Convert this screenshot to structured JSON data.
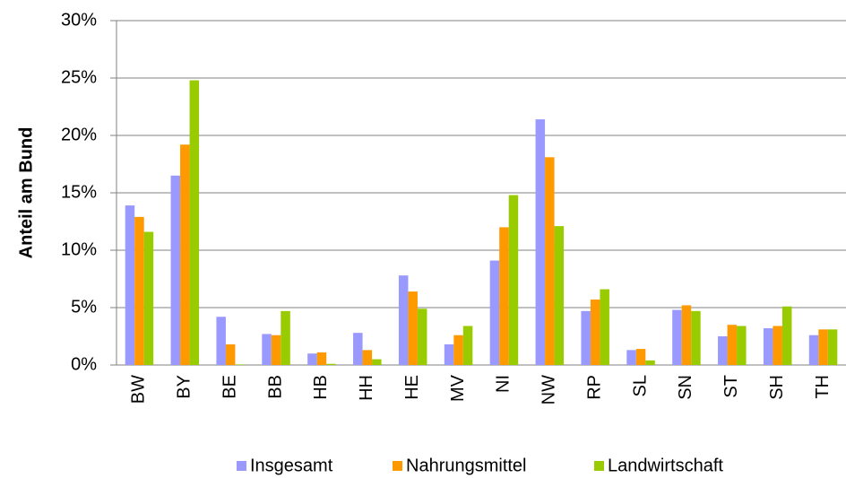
{
  "chart_data": {
    "type": "bar",
    "y_label": "Anteil am Bund",
    "categories": [
      "BW",
      "BY",
      "BE",
      "BB",
      "HB",
      "HH",
      "HE",
      "MV",
      "NI",
      "NW",
      "RP",
      "SL",
      "SN",
      "ST",
      "SH",
      "TH"
    ],
    "series": [
      {
        "name": "Insgesamt",
        "color": "#9999ff",
        "values": [
          13.9,
          16.5,
          4.2,
          2.7,
          1.0,
          2.8,
          7.8,
          1.8,
          9.1,
          21.4,
          4.7,
          1.3,
          4.8,
          2.5,
          3.2,
          2.6
        ]
      },
      {
        "name": "Nahrungsmittel",
        "color": "#ff9900",
        "values": [
          12.9,
          19.2,
          1.8,
          2.6,
          1.1,
          1.3,
          6.4,
          2.6,
          12.0,
          18.1,
          5.7,
          1.4,
          5.2,
          3.5,
          3.4,
          3.1
        ]
      },
      {
        "name": "Landwirtschaft",
        "color": "#99cc00",
        "values": [
          11.6,
          24.8,
          0.05,
          4.7,
          0.1,
          0.5,
          4.9,
          3.4,
          14.8,
          12.1,
          6.6,
          0.4,
          4.7,
          3.4,
          5.1,
          3.1
        ]
      }
    ],
    "ylim": [
      0,
      30
    ],
    "yticks": [
      {
        "value": 0,
        "label": "0%"
      },
      {
        "value": 5,
        "label": "5%"
      },
      {
        "value": 10,
        "label": "10%"
      },
      {
        "value": 15,
        "label": "15%"
      },
      {
        "value": 20,
        "label": "20%"
      },
      {
        "value": 25,
        "label": "25%"
      },
      {
        "value": 30,
        "label": "30%"
      }
    ],
    "grid": true,
    "legend": "bottom"
  }
}
